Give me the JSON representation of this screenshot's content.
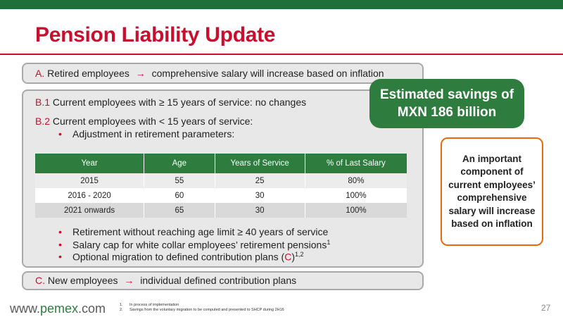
{
  "title": "Pension Liability Update",
  "section_a": {
    "letter": "A.",
    "text_before": "Retired employees",
    "arrow": "→",
    "text_after": "comprehensive salary will increase based on inflation"
  },
  "section_b": {
    "b1_letter": "B.1",
    "b1_text": "Current employees with ≥ 15 years of service: no changes",
    "b2_letter": "B.2",
    "b2_text": "Current employees with < 15 years of service:",
    "bullet_top": "Adjustment in retirement parameters:",
    "table": {
      "headers": [
        "Year",
        "Age",
        "Years of Service",
        "% of Last Salary"
      ],
      "rows": [
        [
          "2015",
          "55",
          "25",
          "80%"
        ],
        [
          "2016 - 2020",
          "60",
          "30",
          "100%"
        ],
        [
          "2021 onwards",
          "65",
          "30",
          "100%"
        ]
      ]
    },
    "bullets_bottom": [
      "Retirement without reaching age limit ≥ 40 years of service",
      "Salary cap for white collar employees’ retirement pensions",
      "Optional migration to defined contribution plans ("
    ],
    "bullet2_sup": "1",
    "bullet3_letter": "C",
    "bullet3_close": ")",
    "bullet3_sup": "1,2"
  },
  "section_c": {
    "letter": "C.",
    "text_before": "New employees",
    "arrow": "→",
    "text_after": "individual defined contribution plans"
  },
  "savings_box": {
    "line1": "Estimated savings of",
    "line2": "MXN 186 billion"
  },
  "callout": "An important component of current employees’ comprehensive salary will increase based on inflation",
  "footer": {
    "url_prefix": "www.",
    "url_brand": "pemex",
    "url_suffix": ".com",
    "notes": [
      {
        "num": "1.",
        "text": "In process of implementation"
      },
      {
        "num": "2.",
        "text": "Savings from the voluntary migration to be computed and presented to SHCP during 2H16"
      }
    ],
    "page_number": "27"
  },
  "colors": {
    "brand_green": "#2e7d3e",
    "title_red": "#c8102e",
    "callout_orange": "#e86a10"
  }
}
